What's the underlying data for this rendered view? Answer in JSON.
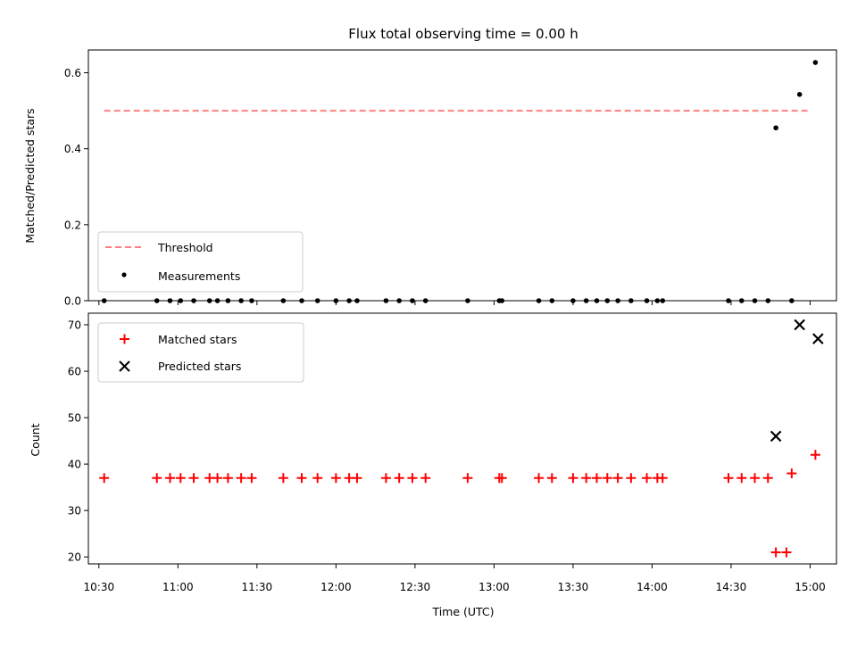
{
  "chart_data": [
    {
      "type": "scatter",
      "title": "Flux total observing time = 0.00 h",
      "xlabel": "",
      "ylabel": "Matched/Predicted stars",
      "ylim": [
        0.0,
        0.66
      ],
      "yticks": [
        "0.0",
        "0.2",
        "0.4",
        "0.6"
      ],
      "legend_position": "lower-left",
      "threshold": {
        "name": "Threshold",
        "value": 0.5,
        "x_range": [
          "10:32",
          "14:59"
        ],
        "color": "#ff7f7f",
        "style": "dashed"
      },
      "series": [
        {
          "name": "Measurements",
          "color": "#000000",
          "marker": "dot",
          "x": [
            "10:32",
            "10:52",
            "10:57",
            "11:01",
            "11:06",
            "11:12",
            "11:15",
            "11:19",
            "11:24",
            "11:28",
            "11:40",
            "11:47",
            "11:53",
            "12:00",
            "12:05",
            "12:08",
            "12:19",
            "12:24",
            "12:29",
            "12:34",
            "12:50",
            "13:02",
            "13:03",
            "13:17",
            "13:22",
            "13:30",
            "13:35",
            "13:39",
            "13:43",
            "13:47",
            "13:52",
            "13:58",
            "14:02",
            "14:04",
            "14:29",
            "14:34",
            "14:39",
            "14:44",
            "14:47",
            "14:53",
            "14:56",
            "15:02"
          ],
          "y": [
            0,
            0,
            0,
            0,
            0,
            0,
            0,
            0,
            0,
            0,
            0,
            0,
            0,
            0,
            0,
            0,
            0,
            0,
            0,
            0,
            0,
            0,
            0,
            0,
            0,
            0,
            0,
            0,
            0,
            0,
            0,
            0,
            0,
            0,
            0,
            0,
            0,
            0,
            0.455,
            0,
            0.543,
            0.627
          ]
        }
      ]
    },
    {
      "type": "scatter",
      "title": "",
      "xlabel": "Time (UTC)",
      "ylabel": "Count",
      "ylim": [
        18.5,
        72.5
      ],
      "yticks": [
        "20",
        "30",
        "40",
        "50",
        "60",
        "70"
      ],
      "xticks": [
        "10:30",
        "11:00",
        "11:30",
        "12:00",
        "12:30",
        "13:00",
        "13:30",
        "14:00",
        "14:30",
        "15:00"
      ],
      "legend_position": "upper-left",
      "series": [
        {
          "name": "Matched stars",
          "color": "#ff0000",
          "marker": "plus",
          "x": [
            "10:32",
            "10:52",
            "10:57",
            "11:01",
            "11:06",
            "11:12",
            "11:15",
            "11:19",
            "11:24",
            "11:28",
            "11:40",
            "11:47",
            "11:53",
            "12:00",
            "12:05",
            "12:08",
            "12:19",
            "12:24",
            "12:29",
            "12:34",
            "12:50",
            "13:02",
            "13:03",
            "13:17",
            "13:22",
            "13:30",
            "13:35",
            "13:39",
            "13:43",
            "13:47",
            "13:52",
            "13:58",
            "14:02",
            "14:04",
            "14:29",
            "14:34",
            "14:39",
            "14:44",
            "14:47",
            "14:51",
            "14:53",
            "15:02"
          ],
          "y": [
            37,
            37,
            37,
            37,
            37,
            37,
            37,
            37,
            37,
            37,
            37,
            37,
            37,
            37,
            37,
            37,
            37,
            37,
            37,
            37,
            37,
            37,
            37,
            37,
            37,
            37,
            37,
            37,
            37,
            37,
            37,
            37,
            37,
            37,
            37,
            37,
            37,
            37,
            21,
            21,
            38,
            42
          ]
        },
        {
          "name": "Predicted stars",
          "color": "#000000",
          "marker": "x",
          "x": [
            "14:47",
            "14:56",
            "15:03"
          ],
          "y": [
            46,
            70,
            67
          ]
        }
      ]
    }
  ]
}
